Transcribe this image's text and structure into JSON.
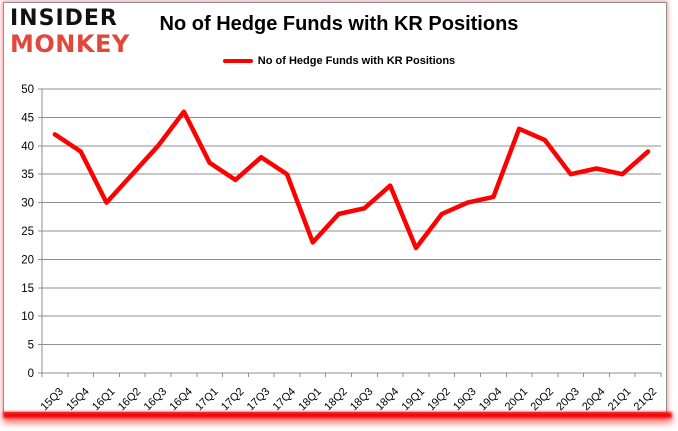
{
  "logo": {
    "line1": "INSIDER",
    "line2": "MONKEY",
    "line1_color": "#111111",
    "line2_color": "#e2483a"
  },
  "header": {
    "title": "No of Hedge Funds with KR Positions"
  },
  "legend": {
    "label": "No of Hedge Funds with KR Positions",
    "line_color": "#ff0000"
  },
  "colors": {
    "series_line": "#ff0000",
    "gridline": "#8f8f8f",
    "axis": "#8f8f8f",
    "tick_label": "#000000",
    "background": "#ffffff",
    "outer_glow": "#ff0000"
  },
  "chart_data": {
    "type": "line",
    "title": "No of Hedge Funds with KR Positions",
    "categories": [
      "15Q3",
      "15Q4",
      "16Q1",
      "16Q2",
      "16Q3",
      "16Q4",
      "17Q1",
      "17Q2",
      "17Q3",
      "17Q4",
      "18Q1",
      "18Q2",
      "18Q3",
      "18Q4",
      "19Q1",
      "19Q2",
      "19Q3",
      "19Q4",
      "20Q1",
      "20Q2",
      "20Q3",
      "20Q4",
      "21Q1",
      "21Q2"
    ],
    "series": [
      {
        "name": "No of Hedge Funds with KR Positions",
        "color": "#ff0000",
        "values": [
          42,
          39,
          30,
          35,
          40,
          46,
          37,
          34,
          38,
          35,
          23,
          28,
          29,
          33,
          22,
          28,
          30,
          31,
          43,
          41,
          35,
          36,
          35,
          39
        ]
      }
    ],
    "xlabel": "",
    "ylabel": "",
    "ylim": [
      0,
      50
    ],
    "ytick_step": 5,
    "grid": true,
    "legend_position": "top",
    "x_label_rotation_deg": 45
  }
}
